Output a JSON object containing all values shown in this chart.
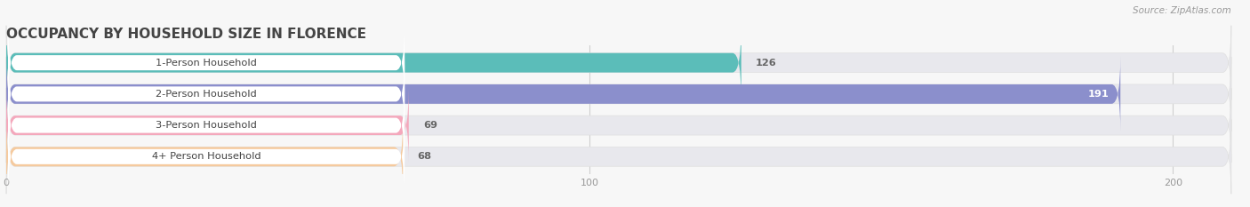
{
  "title": "OCCUPANCY BY HOUSEHOLD SIZE IN FLORENCE",
  "source": "Source: ZipAtlas.com",
  "categories": [
    "1-Person Household",
    "2-Person Household",
    "3-Person Household",
    "4+ Person Household"
  ],
  "values": [
    126,
    191,
    69,
    68
  ],
  "bar_colors": [
    "#5bbdb9",
    "#8b8fcc",
    "#f4a8bc",
    "#f5ca9e"
  ],
  "background_color": "#f7f7f7",
  "xlim": [
    0,
    210
  ],
  "xticks": [
    0,
    100,
    200
  ],
  "title_fontsize": 11,
  "bar_height": 0.62
}
